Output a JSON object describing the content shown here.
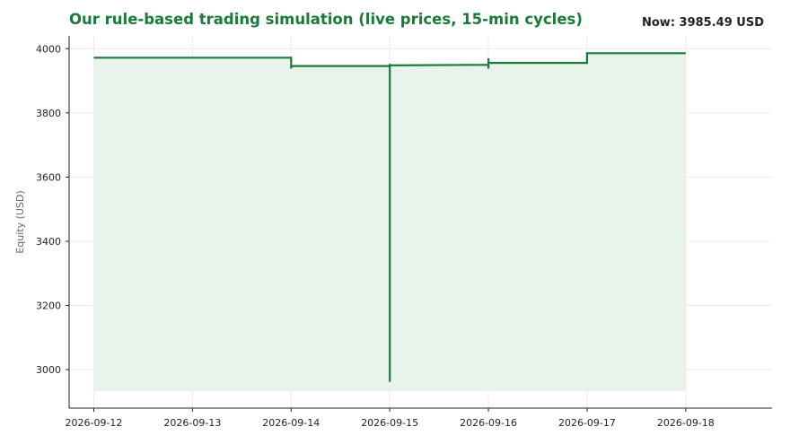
{
  "header": {
    "title": "Our rule-based trading simulation (live prices, 15-min cycles)",
    "now_label": "Now: 3985.49 USD"
  },
  "colors": {
    "accent": "#1a7a3a",
    "fill": "#e8f3ec",
    "grid": "#ececec",
    "axis": "#222222"
  },
  "chart_data": {
    "type": "line",
    "title": "Our rule-based trading simulation (live prices, 15-min cycles)",
    "xlabel": "",
    "ylabel": "Equity (USD)",
    "x_ticks": [
      "2026-09-12",
      "2026-09-13",
      "2026-09-14",
      "2026-09-15",
      "2026-09-16",
      "2026-09-17",
      "2026-09-18"
    ],
    "y_ticks": [
      3000,
      3200,
      3400,
      3600,
      3800,
      4000
    ],
    "ylim": [
      2880,
      4040
    ],
    "xlim": [
      "2026-09-11 18:00",
      "2026-09-18 21:00"
    ],
    "grid": true,
    "legend": "none",
    "series": [
      {
        "x": [
          "2026-09-12 00:00",
          "2026-09-14 00:00",
          "2026-09-14 00:00",
          "2026-09-14 00:00",
          "2026-09-14 00:00",
          "2026-09-15 00:00",
          "2026-09-15 00:00",
          "2026-09-15 00:00",
          "2026-09-15 00:00",
          "2026-09-16 00:00",
          "2026-09-16 00:00",
          "2026-09-16 00:00",
          "2026-09-16 00:00",
          "2026-09-17 00:00",
          "2026-09-17 00:00",
          "2026-09-18 00:00"
        ],
        "y": [
          3972,
          3972,
          3962,
          3938,
          3946,
          3946,
          2962,
          3953,
          3948,
          3950,
          3938,
          3970,
          3956,
          3956,
          3986,
          3986
        ]
      }
    ]
  }
}
